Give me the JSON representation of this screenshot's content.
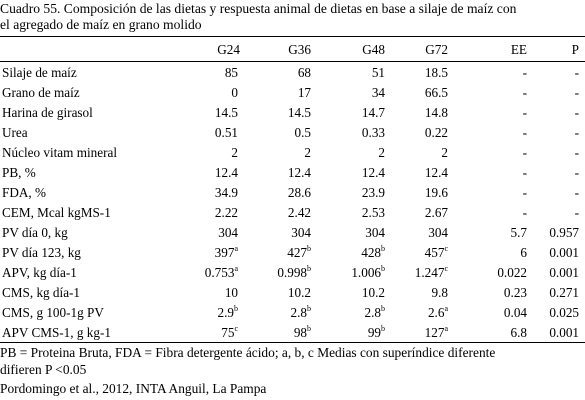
{
  "caption": {
    "line1": "Cuadro 55. Composición de las dietas y respuesta animal de dietas en base a silaje de maíz con",
    "line2": "el agregado de maíz en grano molido"
  },
  "columns": [
    "",
    "G24",
    "G36",
    "G48",
    "G72",
    "EE",
    "P"
  ],
  "rows": [
    {
      "label": "Silaje de maíz",
      "cells": [
        {
          "v": "85"
        },
        {
          "v": "68"
        },
        {
          "v": "51"
        },
        {
          "v": "18.5"
        },
        {
          "v": "-"
        },
        {
          "v": "-"
        }
      ]
    },
    {
      "label": "Grano de maíz",
      "cells": [
        {
          "v": "0"
        },
        {
          "v": "17"
        },
        {
          "v": "34"
        },
        {
          "v": "66.5"
        },
        {
          "v": "-"
        },
        {
          "v": "-"
        }
      ]
    },
    {
      "label": "Harina de girasol",
      "cells": [
        {
          "v": "14.5"
        },
        {
          "v": "14.5"
        },
        {
          "v": "14.7"
        },
        {
          "v": "14.8"
        },
        {
          "v": "-"
        },
        {
          "v": "-"
        }
      ]
    },
    {
      "label": "Urea",
      "cells": [
        {
          "v": "0.51"
        },
        {
          "v": "0.5"
        },
        {
          "v": "0.33"
        },
        {
          "v": "0.22"
        },
        {
          "v": "-"
        },
        {
          "v": "-"
        }
      ]
    },
    {
      "label": "Núcleo vitam mineral",
      "cells": [
        {
          "v": "2"
        },
        {
          "v": "2"
        },
        {
          "v": "2"
        },
        {
          "v": "2"
        },
        {
          "v": "-"
        },
        {
          "v": "-"
        }
      ]
    },
    {
      "label": "PB, %",
      "cells": [
        {
          "v": "12.4"
        },
        {
          "v": "12.4"
        },
        {
          "v": "12.4"
        },
        {
          "v": "12.4"
        },
        {
          "v": "-"
        },
        {
          "v": "-"
        }
      ]
    },
    {
      "label": "FDA, %",
      "cells": [
        {
          "v": "34.9"
        },
        {
          "v": "28.6"
        },
        {
          "v": "23.9"
        },
        {
          "v": "19.6"
        },
        {
          "v": "-"
        },
        {
          "v": "-"
        }
      ]
    },
    {
      "label": "CEM, Mcal kgMS-1",
      "cells": [
        {
          "v": "2.22"
        },
        {
          "v": "2.42"
        },
        {
          "v": "2.53"
        },
        {
          "v": "2.67"
        },
        {
          "v": "-"
        },
        {
          "v": "-"
        }
      ]
    },
    {
      "label": "PV día 0, kg",
      "cells": [
        {
          "v": "304"
        },
        {
          "v": "304"
        },
        {
          "v": "304"
        },
        {
          "v": "304"
        },
        {
          "v": "5.7"
        },
        {
          "v": "0.957"
        }
      ]
    },
    {
      "label": "PV día 123, kg",
      "cells": [
        {
          "v": "397",
          "sup": "a"
        },
        {
          "v": "427",
          "sup": "b"
        },
        {
          "v": "428",
          "sup": "b"
        },
        {
          "v": "457",
          "sup": "c"
        },
        {
          "v": "6"
        },
        {
          "v": "0.001"
        }
      ]
    },
    {
      "label": "APV, kg día-1",
      "cells": [
        {
          "v": "0.753",
          "sup": "a"
        },
        {
          "v": "0.998",
          "sup": "b"
        },
        {
          "v": "1.006",
          "sup": "b"
        },
        {
          "v": "1.247",
          "sup": "c"
        },
        {
          "v": "0.022"
        },
        {
          "v": "0.001"
        }
      ]
    },
    {
      "label": "CMS, kg día-1",
      "cells": [
        {
          "v": "10"
        },
        {
          "v": "10.2"
        },
        {
          "v": "10.2"
        },
        {
          "v": "9.8"
        },
        {
          "v": "0.23"
        },
        {
          "v": "0.271"
        }
      ]
    },
    {
      "label": "CMS, g 100-1g PV",
      "cells": [
        {
          "v": "2.9",
          "sup": "b"
        },
        {
          "v": "2.8",
          "sup": "b"
        },
        {
          "v": "2.8",
          "sup": "b"
        },
        {
          "v": "2.6",
          "sup": "a"
        },
        {
          "v": "0.04"
        },
        {
          "v": "0.025"
        }
      ]
    },
    {
      "label": "APV CMS-1, g kg-1",
      "cells": [
        {
          "v": "75",
          "sup": "c"
        },
        {
          "v": "98",
          "sup": "b"
        },
        {
          "v": "99",
          "sup": "b"
        },
        {
          "v": "127",
          "sup": "a"
        },
        {
          "v": "6.8"
        },
        {
          "v": "0.001"
        }
      ]
    }
  ],
  "footnotes": {
    "line1": "PB = Proteina Bruta, FDA = Fibra detergente ácido;  a, b, c Medias con superíndice diferente",
    "line2": "difieren P <0.05",
    "source": "Pordomingo et al., 2012,  INTA Anguil, La Pampa"
  }
}
